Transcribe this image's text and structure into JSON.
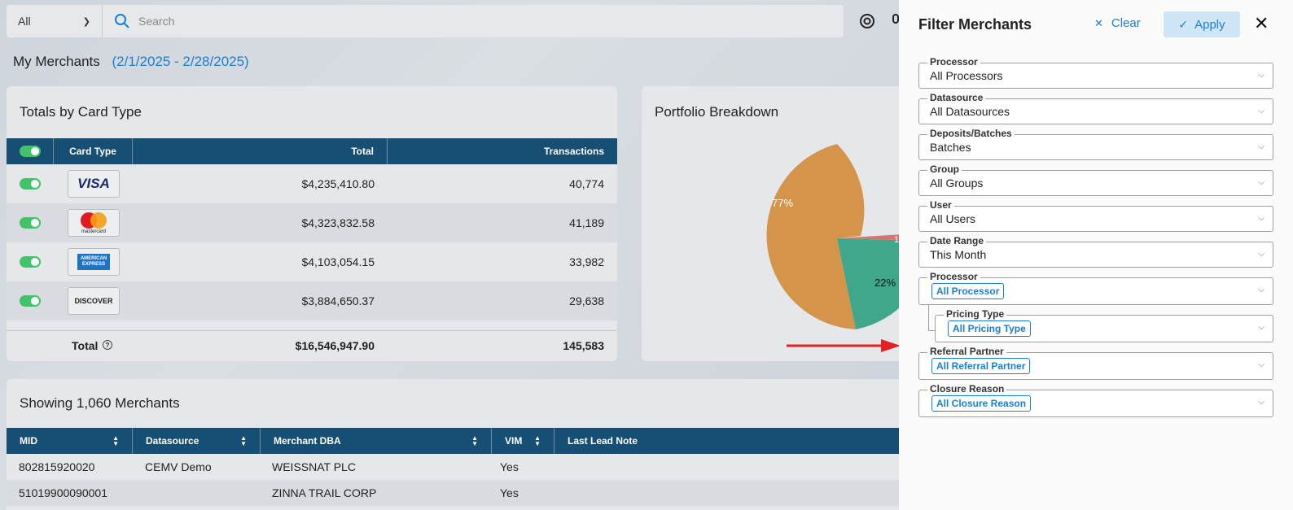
{
  "topbar": {
    "select_value": "All",
    "search_placeholder": "Search"
  },
  "page": {
    "title": "My Merchants",
    "date_range": "(2/1/2025 - 2/28/2025)"
  },
  "totals": {
    "title": "Totals by Card Type",
    "headers": {
      "card_type": "Card Type",
      "total": "Total",
      "transactions": "Transactions"
    },
    "rows": [
      {
        "card": "VISA",
        "total": "$4,235,410.80",
        "transactions": "40,774"
      },
      {
        "card": "mastercard",
        "total": "$4,323,832.58",
        "transactions": "41,189"
      },
      {
        "card": "AMERICAN EXPRESS",
        "total": "$4,103,054.15",
        "transactions": "33,982"
      },
      {
        "card": "DISCOVER",
        "total": "$3,884,650.37",
        "transactions": "29,638"
      }
    ],
    "footer": {
      "label": "Total",
      "total": "$16,546,947.90",
      "transactions": "145,583"
    }
  },
  "portfolio": {
    "title": "Portfolio Breakdown",
    "label_77": "77%",
    "label_22": "22%",
    "label_1": "1"
  },
  "merchants": {
    "title": "Showing 1,060 Merchants",
    "headers": {
      "mid": "MID",
      "datasource": "Datasource",
      "dba": "Merchant DBA",
      "vim": "VIM",
      "note": "Last Lead Note"
    },
    "rows": [
      {
        "mid": "802815920020",
        "datasource": "CEMV Demo",
        "dba": "WEISSNAT PLC",
        "vim": "Yes"
      },
      {
        "mid": "51019900090001",
        "datasource": "",
        "dba": "ZINNA TRAIL CORP",
        "vim": "Yes"
      }
    ]
  },
  "filter": {
    "title": "Filter Merchants",
    "clear": "Clear",
    "apply": "Apply",
    "processor": {
      "label": "Processor",
      "value": "All Processors"
    },
    "datasource": {
      "label": "Datasource",
      "value": "All Datasources"
    },
    "deposits": {
      "label": "Deposits/Batches",
      "value": "Batches"
    },
    "group": {
      "label": "Group",
      "value": "All Groups"
    },
    "user": {
      "label": "User",
      "value": "All Users"
    },
    "date_range": {
      "label": "Date Range",
      "value": "This Month"
    },
    "processor2": {
      "label": "Processor",
      "chip": "All Processor"
    },
    "pricing": {
      "label": "Pricing Type",
      "chip": "All Pricing Type"
    },
    "referral": {
      "label": "Referral Partner",
      "chip": "All Referral Partner"
    },
    "closure": {
      "label": "Closure Reason",
      "chip": "All Closure Reason"
    }
  },
  "colors": {
    "header": "#174e73",
    "accent": "#1a7fd0",
    "toggle": "#41c36a",
    "pie_orange": "#d4944a",
    "pie_green": "#3fa88a",
    "pie_red": "#e07070"
  }
}
